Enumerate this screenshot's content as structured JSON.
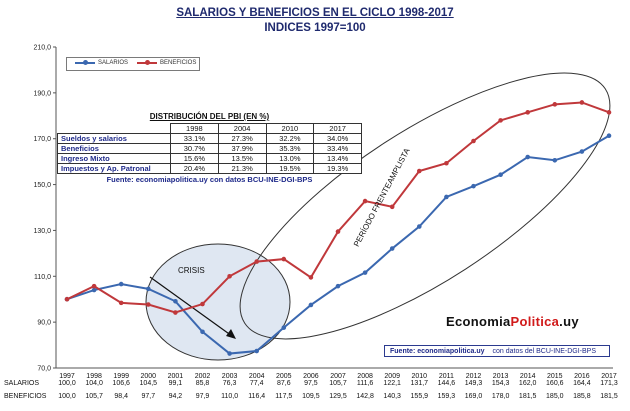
{
  "title": "SALARIOS Y BENEFICIOS EN EL CICLO 1998-2017",
  "subtitle": "INDICES 1997=100",
  "colors": {
    "salarios": "#3b68b0",
    "beneficios": "#c0383b",
    "title": "#1f2a6e"
  },
  "annotations": {
    "crisis": "CRISIS",
    "periodo": "PERÍODO FRENTEAMPLISTA"
  },
  "source_bottom": {
    "part1": "Fuente: economiapolitica.uy",
    "part2": "con datos del BCU-INE-DGI-BPS"
  },
  "logo": {
    "part1": "Economia",
    "part2": "Politica",
    "part3": ".uy"
  },
  "pbi_table": {
    "title": "DISTRIBUCIÓN DEL PBI (EN %)",
    "headers": [
      "1998",
      "2004",
      "2010",
      "2017"
    ],
    "rows": [
      {
        "label": "Sueldos y salarios",
        "values": [
          "33.1%",
          "27.3%",
          "32.2%",
          "34.0%"
        ]
      },
      {
        "label": "Beneficios",
        "values": [
          "30.7%",
          "37.9%",
          "35.3%",
          "33.4%"
        ]
      },
      {
        "label": "Ingreso Mixto",
        "values": [
          "15.6%",
          "13.5%",
          "13.0%",
          "13.4%"
        ]
      },
      {
        "label": "Impuestos y Ap. Patronal",
        "values": [
          "20.4%",
          "21.3%",
          "19.5%",
          "19.3%"
        ]
      }
    ],
    "source": "Fuente: economiapolitica.uy con datos BCU-INE-DGI-BPS"
  },
  "chart_data": {
    "type": "line",
    "title": "SALARIOS Y BENEFICIOS EN EL CICLO 1998-2017",
    "subtitle": "INDICES 1997=100",
    "categories": [
      "1997",
      "1998",
      "1999",
      "2000",
      "2001",
      "2002",
      "2003",
      "2004",
      "2005",
      "2006",
      "2007",
      "2008",
      "2009",
      "2010",
      "2011",
      "2012",
      "2013",
      "2014",
      "2015",
      "2016",
      "2017"
    ],
    "series": [
      {
        "name": "SALARIOS",
        "values_text": [
          "100,0",
          "104,0",
          "106,6",
          "104,5",
          "99,1",
          "85,8",
          "76,3",
          "77,4",
          "87,6",
          "97,5",
          "105,7",
          "111,6",
          "122,1",
          "131,7",
          "144,6",
          "149,3",
          "154,3",
          "162,0",
          "160,6",
          "164,4",
          "171,3"
        ],
        "values": [
          100.0,
          104.0,
          106.6,
          104.5,
          99.1,
          85.8,
          76.3,
          77.4,
          87.6,
          97.5,
          105.7,
          111.6,
          122.1,
          131.7,
          144.6,
          149.3,
          154.3,
          162.0,
          160.6,
          164.4,
          171.3
        ]
      },
      {
        "name": "BENEFICIOS",
        "values_text": [
          "100,0",
          "105,7",
          "98,4",
          "97,7",
          "94,2",
          "97,9",
          "110,0",
          "116,4",
          "117,5",
          "109,5",
          "129,5",
          "142,8",
          "140,3",
          "155,9",
          "159,3",
          "169,0",
          "178,0",
          "181,5",
          "185,0",
          "185,8",
          "181,5"
        ],
        "values": [
          100.0,
          105.7,
          98.4,
          97.7,
          94.2,
          97.9,
          110.0,
          116.4,
          117.5,
          109.5,
          129.5,
          142.8,
          140.3,
          155.9,
          159.3,
          169.0,
          178.0,
          181.5,
          185.0,
          185.8,
          181.5
        ]
      }
    ],
    "y_ticks": [
      "70,0",
      "90,0",
      "110,0",
      "130,0",
      "150,0",
      "170,0",
      "190,0",
      "210,0"
    ],
    "ylim": [
      70,
      210
    ],
    "legend": "top-left",
    "grid": false
  }
}
